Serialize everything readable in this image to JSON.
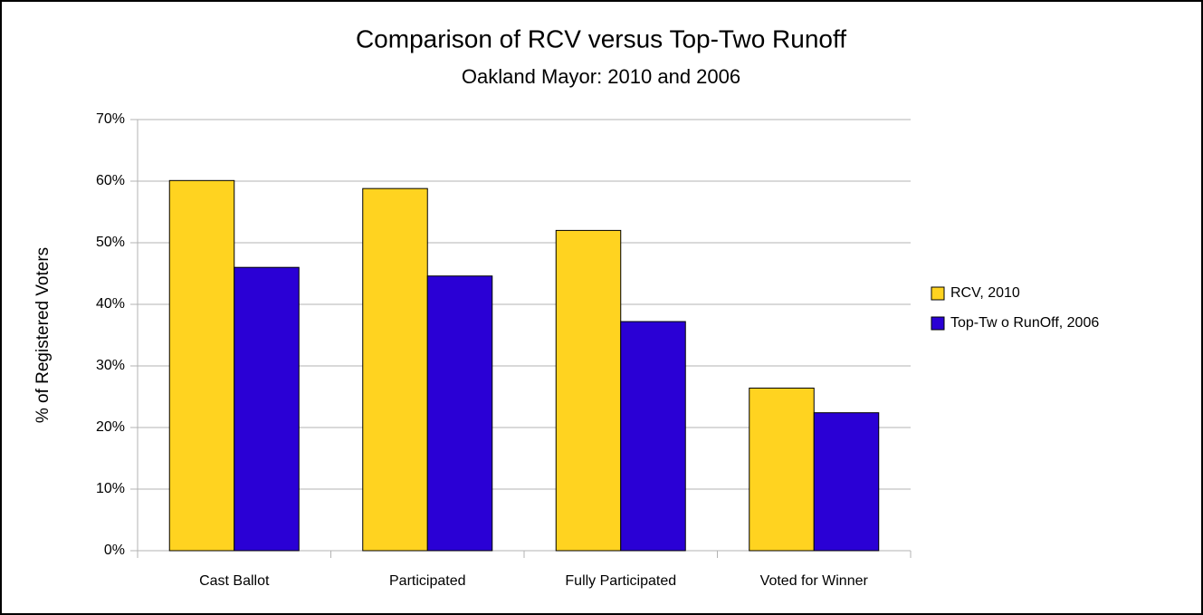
{
  "chart_data": {
    "type": "bar",
    "title": "Comparison of RCV versus Top-Two Runoff",
    "subtitle": "Oakland Mayor: 2010 and 2006",
    "y_label": "% of Registered Voters",
    "categories": [
      "Cast Ballot",
      "Participated",
      "Fully Participated",
      "Voted for Winner"
    ],
    "series": [
      {
        "name": "RCV, 2010",
        "color": "#ffd320",
        "values": [
          60.1,
          58.8,
          52,
          26.4
        ]
      },
      {
        "name": "Top-Tw o RunOff, 2006",
        "color": "#2a00d5",
        "values": [
          46,
          44.6,
          37.2,
          22.4
        ]
      }
    ],
    "ylim": [
      0,
      70
    ],
    "yticks": [
      {
        "value": 0,
        "label": "0%"
      },
      {
        "value": 10,
        "label": "10%"
      },
      {
        "value": 20,
        "label": "20%"
      },
      {
        "value": 30,
        "label": "30%"
      },
      {
        "value": 40,
        "label": "40%"
      },
      {
        "value": 50,
        "label": "50%"
      },
      {
        "value": 60,
        "label": "60%"
      },
      {
        "value": 70,
        "label": "70%"
      }
    ],
    "grid": true,
    "legend": "right"
  }
}
